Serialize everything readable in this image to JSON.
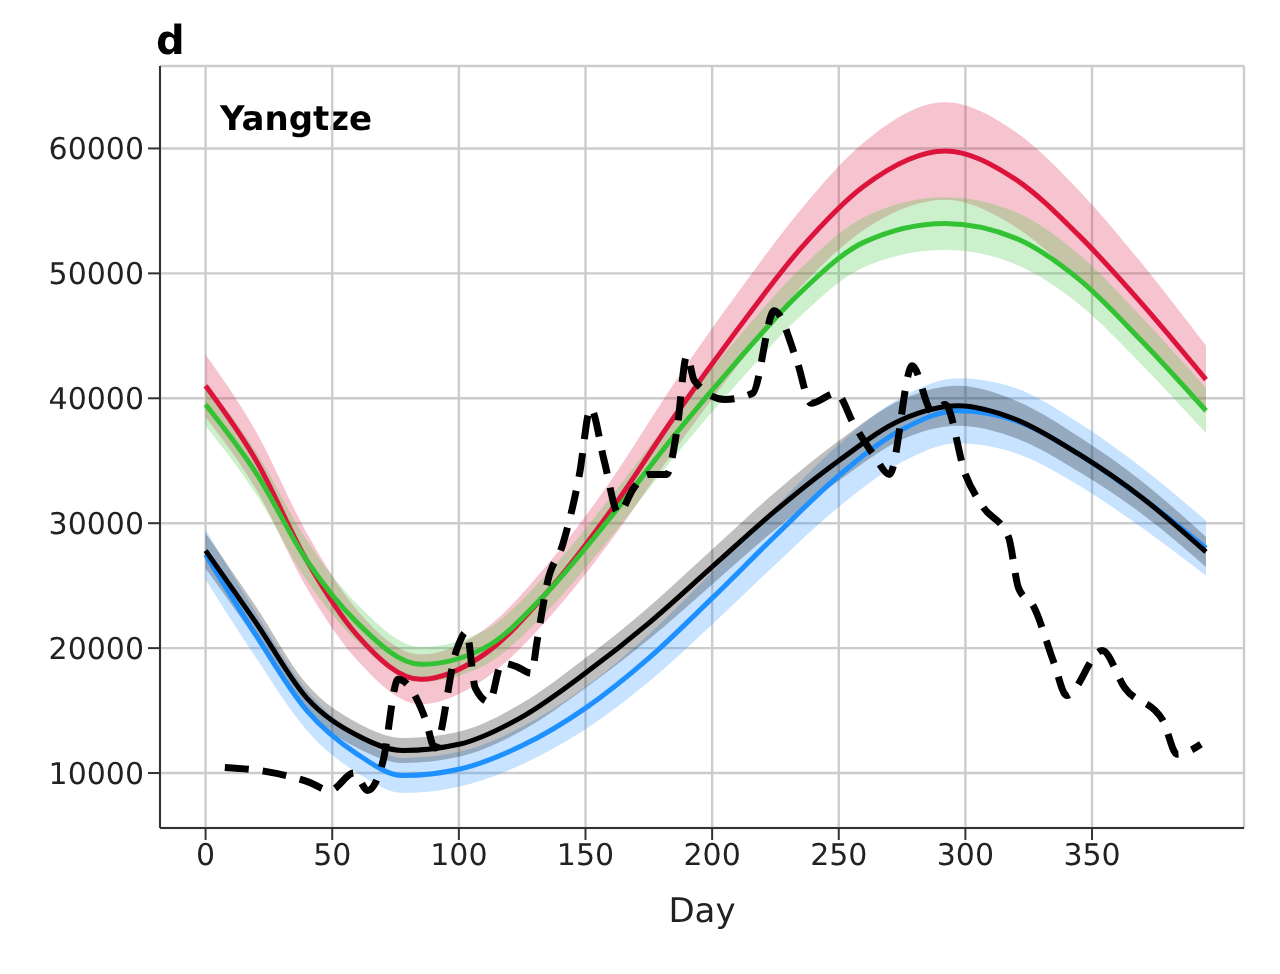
{
  "chart_data": {
    "type": "line",
    "title": "d",
    "xlabel": "Day",
    "annotations": [
      "Yangtze"
    ],
    "xlim": [
      -18,
      410
    ],
    "ylim": [
      5600,
      66600
    ],
    "xticks": [
      0,
      50,
      100,
      150,
      200,
      250,
      300,
      350
    ],
    "yticks": [
      10000,
      20000,
      30000,
      40000,
      50000,
      60000
    ],
    "grid": true,
    "legend": false,
    "marker": "none",
    "line_style": "solid",
    "series": [
      {
        "color": "#dc143c",
        "x": [
          0,
          20,
          40,
          60,
          85,
          110,
          135,
          160,
          185,
          210,
          235,
          260,
          292,
          320,
          345,
          370,
          395
        ],
        "values": [
          41000,
          35000,
          27000,
          21000,
          17500,
          19500,
          24500,
          31000,
          38500,
          45500,
          52000,
          57000,
          59800,
          57500,
          53000,
          47500,
          41500
        ],
        "lower": [
          38500,
          32700,
          24800,
          19000,
          15500,
          17500,
          22300,
          28600,
          35800,
          42600,
          48900,
          53500,
          55900,
          53700,
          49400,
          44300,
          38800
        ],
        "upper": [
          43500,
          37300,
          29200,
          23000,
          19500,
          21500,
          26700,
          33400,
          41200,
          48400,
          55100,
          60500,
          63700,
          61300,
          56600,
          50700,
          44200
        ]
      },
      {
        "color": "#33c233",
        "x": [
          0,
          20,
          40,
          60,
          85,
          110,
          135,
          160,
          185,
          210,
          235,
          260,
          292,
          320,
          345,
          370,
          395
        ],
        "values": [
          39500,
          34000,
          27000,
          22000,
          18700,
          20000,
          24500,
          30500,
          37000,
          43000,
          48500,
          52500,
          54000,
          52800,
          49500,
          44500,
          39000
        ],
        "lower": [
          37800,
          32300,
          25400,
          20500,
          17300,
          18600,
          23000,
          28900,
          35300,
          41200,
          46600,
          50500,
          51900,
          50700,
          47500,
          42600,
          37200
        ],
        "upper": [
          41200,
          35700,
          28600,
          23500,
          20100,
          21400,
          26000,
          32100,
          38700,
          44800,
          50400,
          54500,
          56100,
          54900,
          51500,
          46400,
          40800
        ]
      },
      {
        "color": "#1e90ff",
        "x": [
          0,
          20,
          40,
          60,
          78,
          100,
          125,
          150,
          175,
          200,
          225,
          250,
          275,
          297,
          320,
          345,
          370,
          395
        ],
        "values": [
          27500,
          21000,
          15000,
          11500,
          9800,
          10300,
          12200,
          15200,
          19200,
          24000,
          29000,
          33800,
          37500,
          39000,
          38200,
          35500,
          32000,
          28000
        ],
        "lower": [
          25500,
          19200,
          13400,
          10000,
          8400,
          8900,
          10700,
          13500,
          17300,
          21900,
          26700,
          31300,
          34900,
          36400,
          35600,
          33000,
          29600,
          25800
        ],
        "upper": [
          29500,
          22800,
          16600,
          13000,
          11200,
          11700,
          13700,
          16900,
          21100,
          26100,
          31300,
          36300,
          40100,
          41600,
          40800,
          38000,
          34400,
          30200
        ]
      },
      {
        "color": "#000000",
        "x": [
          0,
          20,
          40,
          60,
          78,
          100,
          125,
          150,
          175,
          200,
          225,
          250,
          275,
          297,
          320,
          345,
          370,
          395
        ],
        "values": [
          27800,
          22000,
          16000,
          13000,
          11800,
          12300,
          14500,
          18000,
          22000,
          26500,
          31000,
          35000,
          38300,
          39400,
          38300,
          35500,
          32000,
          27700
        ],
        "lower": [
          26400,
          20700,
          14900,
          12000,
          10800,
          11300,
          13400,
          16800,
          20700,
          25100,
          29500,
          33400,
          36700,
          37800,
          36800,
          34100,
          30700,
          26500
        ],
        "upper": [
          29200,
          23300,
          17100,
          14000,
          12800,
          13300,
          15600,
          19200,
          23300,
          27900,
          32500,
          36600,
          39900,
          41000,
          39800,
          36900,
          33300,
          28900
        ]
      },
      {
        "color": "#000000",
        "line_style": "dashed",
        "x": [
          7.6,
          23,
          41,
          49,
          58.6,
          64,
          70,
          76,
          87,
          90.5,
          99,
          103,
          106.5,
          112,
          117,
          123,
          128.6,
          131,
          135,
          141,
          147.6,
          152,
          157.5,
          163,
          169,
          175,
          182,
          186,
          190,
          193,
          205,
          216,
          224.5,
          233.6,
          239,
          249,
          256,
          264,
          270,
          279,
          287,
          292,
          300,
          307,
          317,
          321,
          327,
          335,
          340,
          354,
          363,
          378,
          383.6,
          393
        ],
        "values": [
          10450,
          10150,
          9250,
          8600,
          10000,
          8600,
          10900,
          17500,
          14200,
          12000,
          19800,
          21300,
          16800,
          15700,
          18800,
          18500,
          18000,
          20700,
          25300,
          28300,
          33900,
          39200,
          34900,
          30800,
          32800,
          33900,
          33900,
          37300,
          43400,
          41400,
          39900,
          40400,
          47000,
          42900,
          39600,
          40400,
          37900,
          35400,
          33900,
          42600,
          38900,
          39500,
          33900,
          31300,
          28900,
          24800,
          23300,
          18800,
          16200,
          19800,
          16800,
          14200,
          11500,
          12300
        ]
      }
    ]
  }
}
